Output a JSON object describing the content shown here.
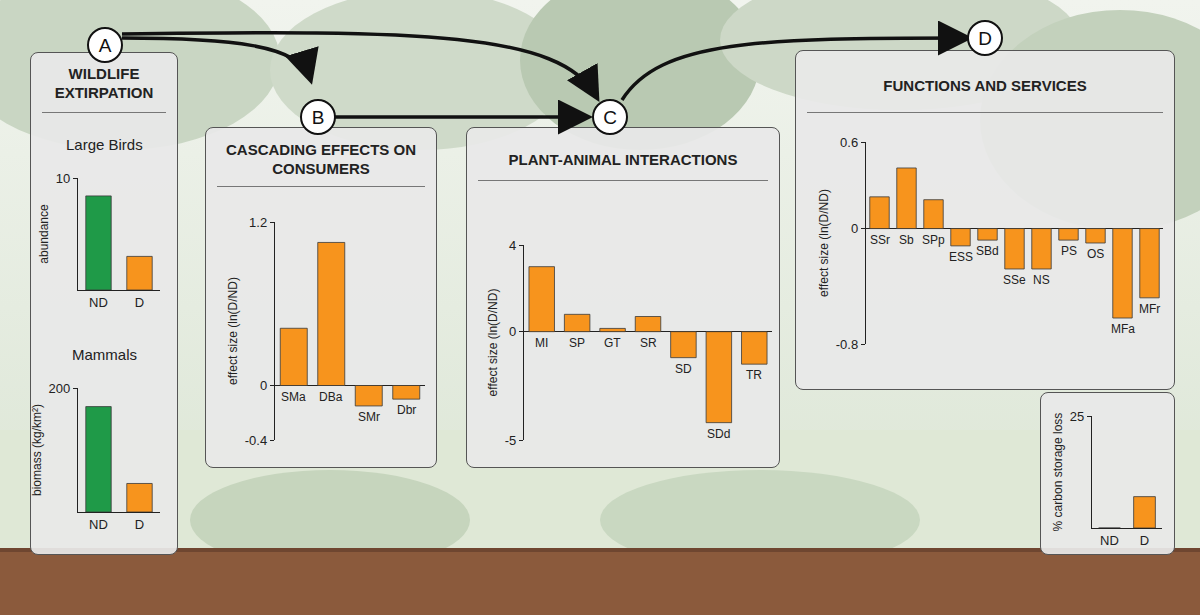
{
  "panels": [
    {
      "letter": "A",
      "title": "WILDLIFE EXTIRPATION"
    },
    {
      "letter": "B",
      "title": "CASCADING EFFECTS ON CONSUMERS"
    },
    {
      "letter": "C",
      "title": "PLANT-ANIMAL INTERACTIONS"
    },
    {
      "letter": "D",
      "title": "FUNCTIONS AND SERVICES"
    }
  ],
  "chart_data": [
    {
      "type": "bar",
      "panel": "A",
      "title": "Large Birds",
      "y_label": "abundance",
      "categories": [
        "ND",
        "D"
      ],
      "values": [
        8.4,
        3.0
      ],
      "colors": [
        "#1f9a48",
        "#f7941d"
      ],
      "ylim": [
        0,
        10
      ],
      "yticks": [
        10
      ],
      "grid": false
    },
    {
      "type": "bar",
      "panel": "A",
      "title": "Mammals",
      "y_label": "biomass (kg/km²)",
      "categories": [
        "ND",
        "D"
      ],
      "values": [
        170,
        46
      ],
      "colors": [
        "#1f9a48",
        "#f7941d"
      ],
      "ylim": [
        0,
        200
      ],
      "yticks": [
        200
      ],
      "grid": false
    },
    {
      "type": "bar",
      "panel": "B",
      "y_label": "effect size (ln(D/ND)",
      "categories": [
        "SMa",
        "DBa",
        "SMr",
        "Dbr"
      ],
      "values": [
        0.42,
        1.05,
        -0.15,
        -0.1
      ],
      "color": "#f7941d",
      "ylim": [
        -0.4,
        1.2
      ],
      "yticks": [
        -0.4,
        0,
        1.2
      ],
      "grid": false,
      "tick_labels": "y"
    },
    {
      "type": "bar",
      "panel": "C",
      "y_label": "effect size (ln(D/ND)",
      "categories": [
        "MI",
        "SP",
        "GT",
        "SR",
        "SD",
        "SDd",
        "TR"
      ],
      "values": [
        3.0,
        0.8,
        0.15,
        0.7,
        -1.2,
        -4.2,
        -1.5
      ],
      "color": "#f7941d",
      "ylim": [
        -5,
        4
      ],
      "yticks": [
        -5,
        0,
        4
      ],
      "grid": false,
      "tick_labels": "y"
    },
    {
      "type": "bar",
      "panel": "D",
      "y_label": "effect size (ln(D/ND)",
      "categories": [
        "SSr",
        "Sb",
        "SPp",
        "ESS",
        "SBd",
        "SSe",
        "NS",
        "PS",
        "OS",
        "MFa",
        "MFr"
      ],
      "values": [
        0.22,
        0.42,
        0.2,
        -0.12,
        -0.08,
        -0.28,
        -0.28,
        -0.08,
        -0.1,
        -0.62,
        -0.48
      ],
      "color": "#f7941d",
      "ylim": [
        -0.8,
        0.6
      ],
      "yticks": [
        -0.8,
        0,
        0.6
      ],
      "grid": false,
      "tick_labels": "y"
    },
    {
      "type": "bar",
      "panel": "D",
      "y_label": "% carbon storage loss",
      "categories": [
        "ND",
        "D"
      ],
      "values": [
        0,
        7
      ],
      "colors": [
        "#1f9a48",
        "#f7941d"
      ],
      "ylim": [
        0,
        25
      ],
      "yticks": [
        25
      ],
      "grid": false
    }
  ]
}
